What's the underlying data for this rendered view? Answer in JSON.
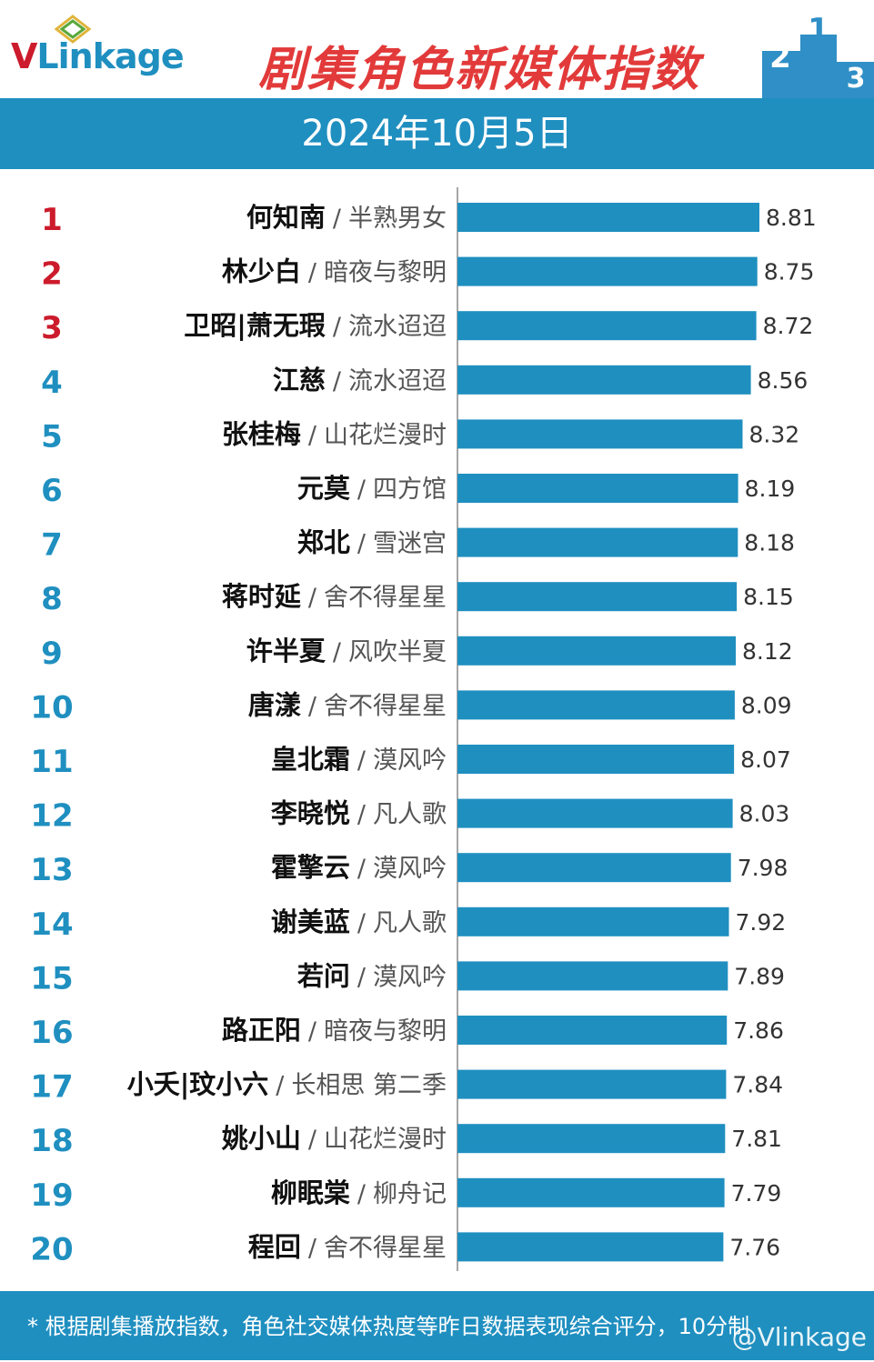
{
  "header": {
    "logo_v": "V",
    "logo_rest": "Linkage",
    "title": "剧集角色新媒体指数",
    "date": "2024年10月5日"
  },
  "colors": {
    "bar": "#1f8fc0",
    "rank_top": "#cc1b2c",
    "rank_other": "#1f8fc0",
    "title": "#e23a3a"
  },
  "chart_data": {
    "type": "bar",
    "orientation": "horizontal",
    "title": "剧集角色新媒体指数",
    "subtitle": "2024年10月5日",
    "separator": "/",
    "xlim": [
      0,
      8.81
    ],
    "rows": [
      {
        "rank": "1",
        "name": "何知南",
        "show": "半熟男女",
        "value": 8.81
      },
      {
        "rank": "2",
        "name": "林少白",
        "show": "暗夜与黎明",
        "value": 8.75
      },
      {
        "rank": "3",
        "name": "卫昭|萧无瑕",
        "show": "流水迢迢",
        "value": 8.72
      },
      {
        "rank": "4",
        "name": "江慈",
        "show": "流水迢迢",
        "value": 8.56
      },
      {
        "rank": "5",
        "name": "张桂梅",
        "show": "山花烂漫时",
        "value": 8.32
      },
      {
        "rank": "6",
        "name": "元莫",
        "show": "四方馆",
        "value": 8.19
      },
      {
        "rank": "7",
        "name": "郑北",
        "show": "雪迷宫",
        "value": 8.18
      },
      {
        "rank": "8",
        "name": "蒋时延",
        "show": "舍不得星星",
        "value": 8.15
      },
      {
        "rank": "9",
        "name": "许半夏",
        "show": "风吹半夏",
        "value": 8.12
      },
      {
        "rank": "10",
        "name": "唐漾",
        "show": "舍不得星星",
        "value": 8.09
      },
      {
        "rank": "11",
        "name": "皇北霜",
        "show": "漠风吟",
        "value": 8.07
      },
      {
        "rank": "12",
        "name": "李晓悦",
        "show": "凡人歌",
        "value": 8.03
      },
      {
        "rank": "13",
        "name": "霍擎云",
        "show": "漠风吟",
        "value": 7.98
      },
      {
        "rank": "14",
        "name": "谢美蓝",
        "show": "凡人歌",
        "value": 7.92
      },
      {
        "rank": "15",
        "name": "若问",
        "show": "漠风吟",
        "value": 7.89
      },
      {
        "rank": "16",
        "name": "路正阳",
        "show": "暗夜与黎明",
        "value": 7.86
      },
      {
        "rank": "17",
        "name": "小夭|玟小六",
        "show": "长相思 第二季",
        "value": 7.84
      },
      {
        "rank": "18",
        "name": "姚小山",
        "show": "山花烂漫时",
        "value": 7.81
      },
      {
        "rank": "19",
        "name": "柳眠棠",
        "show": "柳舟记",
        "value": 7.79
      },
      {
        "rank": "20",
        "name": "程回",
        "show": "舍不得星星",
        "value": 7.76
      }
    ]
  },
  "footer": {
    "note": "* 根据剧集播放指数，角色社交媒体热度等昨日数据表现综合评分，10分制",
    "watermark": "@Vlinkage"
  }
}
